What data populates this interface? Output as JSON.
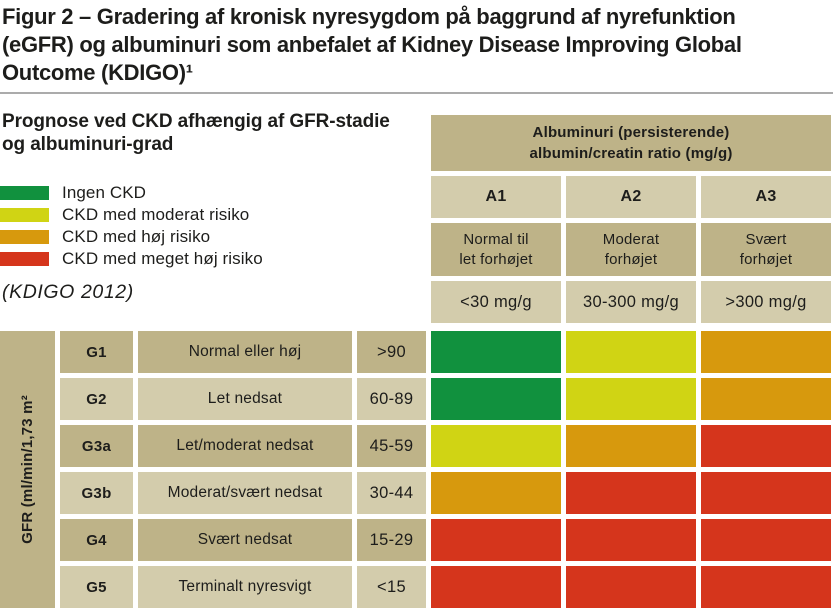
{
  "title_lines": [
    "Figur 2 – Gradering af kronisk nyresygdom på baggrund af nyrefunktion",
    "(eGFR) og albuminuri som anbefalet af Kidney Disease Improving Global",
    "Outcome (KDIGO)¹"
  ],
  "prognose_heading_lines": [
    "Prognose ved CKD afhængig af GFR-stadie",
    "og albuminuri-grad"
  ],
  "legend": [
    {
      "label": "Ingen CKD",
      "color_key": "green"
    },
    {
      "label": "CKD med moderat risiko",
      "color_key": "yellow"
    },
    {
      "label": "CKD med høj risiko",
      "color_key": "orange"
    },
    {
      "label": "CKD med meget høj risiko",
      "color_key": "red"
    }
  ],
  "source_note": "(KDIGO 2012)",
  "albuminuria": {
    "header_line1": "Albuminuri (persisterende)",
    "header_line2": "albumin/creatin ratio (mg/g)",
    "columns": [
      {
        "code": "A1",
        "description_lines": [
          "Normal til",
          "let forhøjet"
        ],
        "range": "<30 mg/g"
      },
      {
        "code": "A2",
        "description_lines": [
          "Moderat",
          "forhøjet"
        ],
        "range": "30-300 mg/g"
      },
      {
        "code": "A3",
        "description_lines": [
          "Svært",
          "forhøjet"
        ],
        "range": ">300 mg/g"
      }
    ]
  },
  "gfr_axis_label": "GFR (ml/min/1,73 m²",
  "gfr_rows": [
    {
      "code": "G1",
      "description": "Normal eller høj",
      "range": ">90",
      "cells": [
        "green",
        "yellow",
        "orange"
      ]
    },
    {
      "code": "G2",
      "description": "Let nedsat",
      "range": "60-89",
      "cells": [
        "green",
        "yellow",
        "orange"
      ]
    },
    {
      "code": "G3a",
      "description": "Let/moderat nedsat",
      "range": "45-59",
      "cells": [
        "yellow",
        "orange",
        "red"
      ]
    },
    {
      "code": "G3b",
      "description": "Moderat/svært nedsat",
      "range": "30-44",
      "cells": [
        "orange",
        "red",
        "red"
      ]
    },
    {
      "code": "G4",
      "description": "Svært nedsat",
      "range": "15-29",
      "cells": [
        "red",
        "red",
        "red"
      ]
    },
    {
      "code": "G5",
      "description": "Terminalt nyresvigt",
      "range": "<15",
      "cells": [
        "red",
        "red",
        "red"
      ]
    }
  ],
  "colors": {
    "green": "#11913e",
    "yellow": "#d0d414",
    "orange": "#d7990d",
    "red": "#d5351c",
    "tan_dark": "#beb388",
    "tan_light": "#d3ccac"
  },
  "risk_labels": {
    "green": "Ingen CKD",
    "yellow": "CKD med moderat risiko",
    "orange": "CKD med høj risiko",
    "red": "CKD med meget høj risiko"
  },
  "chart_data": {
    "type": "heatmap",
    "title": "Gradering af kronisk nyresygdom (eGFR og albuminuri) – KDIGO",
    "x_categories": [
      "A1 (<30 mg/g)",
      "A2 (30-300 mg/g)",
      "A3 (>300 mg/g)"
    ],
    "y_categories": [
      "G1 (>90)",
      "G2 (60-89)",
      "G3a (45-59)",
      "G3b (30-44)",
      "G4 (15-29)",
      "G5 (<15)"
    ],
    "xlabel": "Albuminuri (persisterende) albumin/creatin ratio (mg/g)",
    "ylabel": "GFR (ml/min/1,73 m²",
    "values": [
      [
        "green",
        "yellow",
        "orange"
      ],
      [
        "green",
        "yellow",
        "orange"
      ],
      [
        "yellow",
        "orange",
        "red"
      ],
      [
        "orange",
        "red",
        "red"
      ],
      [
        "red",
        "red",
        "red"
      ],
      [
        "red",
        "red",
        "red"
      ]
    ],
    "legend_position": "top-left",
    "value_legend": {
      "green": "Ingen CKD",
      "yellow": "CKD med moderat risiko",
      "orange": "CKD med høj risiko",
      "red": "CKD med meget høj risiko"
    }
  }
}
